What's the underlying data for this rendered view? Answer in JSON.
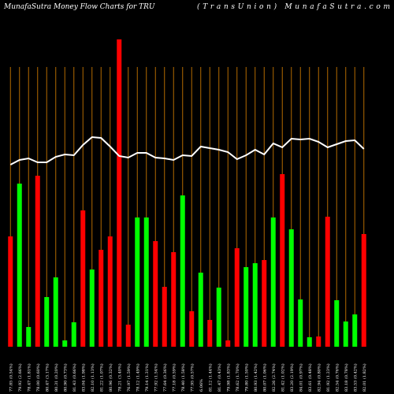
{
  "chart_data": {
    "type": "bar",
    "title": "MunafaSutra  Money Flow  Charts for TRU",
    "subtitle": "(TransUnion) MunafaSutra.com",
    "categories": [
      "77.85 (0.54%)",
      "79.92 (2.66%)",
      "78.47 (1.81%)",
      "78.00 (0.60%)",
      "80.47 (3.17%)",
      "80.31 (0.20%)",
      "80.90 (0.73%)",
      "81.43 (0.66%)",
      "83.04 (1.98%)",
      "82.10 (1.13%)",
      "81.22 (1.07%)",
      "80.96 (0.32%)",
      "78.21 (3.40%)",
      "76.97 (1.59%)",
      "78.12 (1.49%)",
      "79.14 (1.31%)",
      "77.92 (1.54%)",
      "77.64 (0.36%)",
      "77.18 (0.59%)",
      "78.40 (1.58%)",
      "77.95 (0.57%)",
      "6.06%",
      "81.12 (1.44%)",
      "81.47 (0.43%)",
      "79.98 (1.83%)",
      "78.62 (1.70%)",
      "79.80 (1.50%)",
      "80.93 (1.42%)",
      "80.07 (1.06%)",
      "82.26 (2.74%)",
      "81.42 (1.02%)",
      "83.20 (2.19%)",
      "84.01 (0.97%)",
      "83.61 (0.48%)",
      "82.94 (0.80%)",
      "81.92 (1.23%)",
      "82.54 (0.76%)",
      "83.18 (0.78%)",
      "83.53 (0.42%)",
      "82.01 (1.82%)"
    ],
    "series": [
      {
        "values": [
          140,
          207,
          25,
          217,
          63,
          88,
          8,
          31,
          173,
          98,
          123,
          140,
          390,
          28,
          164,
          164,
          134,
          76,
          120,
          192,
          45,
          94,
          34,
          75,
          8,
          125,
          101,
          106,
          110,
          164,
          219,
          149,
          60,
          12,
          13,
          165,
          59,
          32,
          41,
          143
        ],
        "colors": [
          "#ff0000",
          "#00ff00",
          "#00ff00",
          "#ff0000",
          "#00ff00",
          "#00ff00",
          "#00ff00",
          "#00ff00",
          "#ff0000",
          "#00ff00",
          "#ff0000",
          "#ff0000",
          "#ff0000",
          "#ff0000",
          "#00ff00",
          "#00ff00",
          "#ff0000",
          "#ff0000",
          "#ff0000",
          "#00ff00",
          "#ff0000",
          "#00ff00",
          "#ff0000",
          "#00ff00",
          "#ff0000",
          "#ff0000",
          "#00ff00",
          "#00ff00",
          "#ff0000",
          "#00ff00",
          "#ff0000",
          "#00ff00",
          "#00ff00",
          "#00ff00",
          "#ff0000",
          "#ff0000",
          "#00ff00",
          "#00ff00",
          "#00ff00",
          "#ff0000"
        ]
      },
      {
        "type": "line",
        "color": "#ffffff",
        "values": [
          231,
          237,
          239,
          234,
          234,
          241,
          244,
          243,
          256,
          266,
          265,
          254,
          242,
          240,
          246,
          246,
          240,
          239,
          237,
          243,
          242,
          254,
          252,
          250,
          247,
          238,
          243,
          250,
          244,
          258,
          253,
          264,
          263,
          264,
          260,
          253,
          257,
          261,
          262,
          251
        ]
      }
    ],
    "ylim": [
      0,
      390
    ],
    "guide_color": "#b36b00"
  }
}
